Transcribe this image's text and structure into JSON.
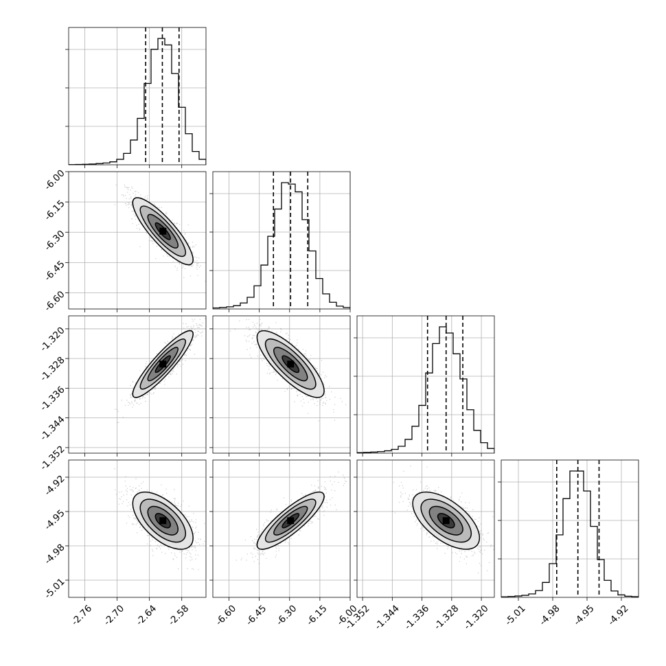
{
  "chart_data": {
    "type": "corner",
    "grid": true,
    "parameters": [
      {
        "range": [
          -2.79,
          -2.535
        ],
        "ticks": [
          "-2.76",
          "-2.70",
          "-2.64",
          "-2.58"
        ],
        "tick_values": [
          -2.76,
          -2.7,
          -2.64,
          -2.58
        ],
        "mean": -2.615,
        "sd": 0.028,
        "quantiles": [
          -2.647,
          -2.616,
          -2.585
        ],
        "hist_peak": 0.25
      },
      {
        "range": [
          -6.68,
          -6.0
        ],
        "ticks": [
          "-6.60",
          "-6.45",
          "-6.30",
          "-6.15",
          "-6.00"
        ],
        "tick_values": [
          -6.6,
          -6.45,
          -6.3,
          -6.15,
          -6.0
        ],
        "mean": -6.295,
        "sd": 0.083,
        "quantiles": [
          -6.38,
          -6.295,
          -6.21
        ],
        "hist_peak": 0.24
      },
      {
        "range": [
          -1.3535,
          -1.3165
        ],
        "ticks": [
          "-1.352",
          "-1.344",
          "-1.336",
          "-1.328",
          "-1.320"
        ],
        "tick_values": [
          -1.352,
          -1.344,
          -1.336,
          -1.328,
          -1.32
        ],
        "mean": -1.3295,
        "sd": 0.0045,
        "quantiles": [
          -1.3345,
          -1.3295,
          -1.325
        ],
        "hist_peak": 0.24
      },
      {
        "range": [
          -5.025,
          -4.905
        ],
        "ticks": [
          "-5.01",
          "-4.98",
          "-4.95",
          "-4.92"
        ],
        "tick_values": [
          -5.01,
          -4.98,
          -4.95,
          -4.92
        ],
        "mean": -4.958,
        "sd": 0.0125,
        "quantiles": [
          -4.9765,
          -4.958,
          -4.9395
        ],
        "hist_peak": 0.23
      }
    ],
    "correlations": [
      [
        1.0,
        -0.85,
        0.9,
        -0.6
      ],
      [
        -0.85,
        1.0,
        -0.8,
        0.85
      ],
      [
        0.9,
        -0.8,
        1.0,
        -0.6
      ],
      [
        -0.6,
        0.85,
        -0.6,
        1.0
      ]
    ],
    "contour_levels_sigma": [
      0.5,
      1.0,
      1.5,
      2.0
    ],
    "colors": {
      "points": "#555555",
      "density": "#000000",
      "lines": "#000000"
    }
  }
}
